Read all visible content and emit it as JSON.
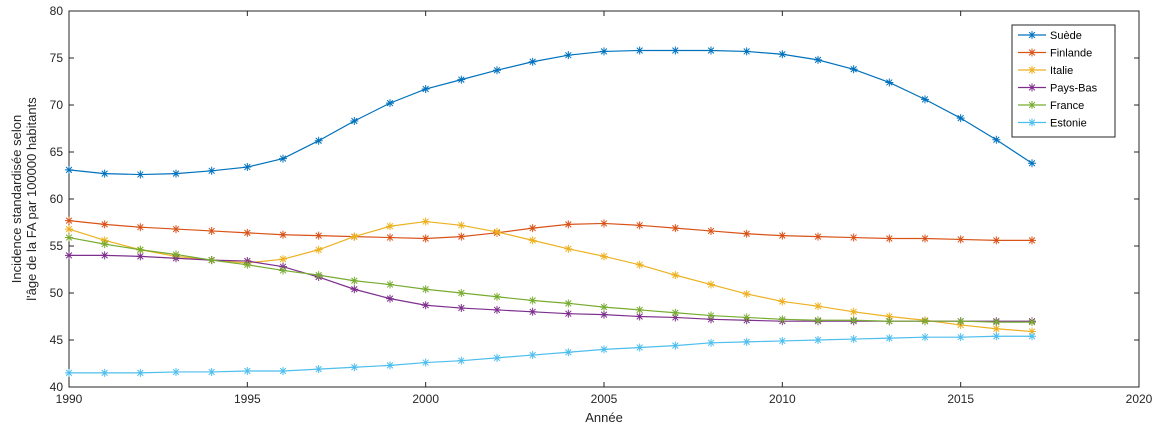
{
  "chart_data": {
    "type": "line",
    "title": "",
    "xlabel": "Année",
    "ylabel_lines": [
      "Incidence standardisée selon",
      "l'âge de la FA par 100000 habitants"
    ],
    "xlim": [
      1990,
      2020
    ],
    "ylim": [
      40,
      80
    ],
    "xticks": [
      1990,
      1995,
      2000,
      2005,
      2010,
      2015,
      2020
    ],
    "yticks": [
      40,
      45,
      50,
      55,
      60,
      65,
      70,
      75,
      80
    ],
    "grid": false,
    "legend_position": "top-right",
    "marker": "asterisk",
    "x": [
      1990,
      1991,
      1992,
      1993,
      1994,
      1995,
      1996,
      1997,
      1998,
      1999,
      2000,
      2001,
      2002,
      2003,
      2004,
      2005,
      2006,
      2007,
      2008,
      2009,
      2010,
      2011,
      2012,
      2013,
      2014,
      2015,
      2016,
      2017
    ],
    "series": [
      {
        "name": "Suède",
        "color": "#0072BD",
        "values": [
          63.1,
          62.7,
          62.6,
          62.7,
          63.0,
          63.4,
          64.3,
          66.2,
          68.3,
          70.2,
          71.7,
          72.7,
          73.7,
          74.6,
          75.3,
          75.7,
          75.8,
          75.8,
          75.8,
          75.7,
          75.4,
          74.8,
          73.8,
          72.4,
          70.6,
          68.6,
          66.3,
          63.8
        ]
      },
      {
        "name": "Finlande",
        "color": "#D95319",
        "values": [
          57.7,
          57.3,
          57.0,
          56.8,
          56.6,
          56.4,
          56.2,
          56.1,
          56.0,
          55.9,
          55.8,
          56.0,
          56.4,
          56.9,
          57.3,
          57.4,
          57.2,
          56.9,
          56.6,
          56.3,
          56.1,
          56.0,
          55.9,
          55.8,
          55.8,
          55.7,
          55.6,
          55.6
        ]
      },
      {
        "name": "Italie",
        "color": "#EDB120",
        "values": [
          56.8,
          55.6,
          54.6,
          53.9,
          53.5,
          53.2,
          53.6,
          54.6,
          56.0,
          57.1,
          57.6,
          57.2,
          56.5,
          55.6,
          54.7,
          53.9,
          53.0,
          51.9,
          50.9,
          49.9,
          49.1,
          48.6,
          48.0,
          47.5,
          47.1,
          46.6,
          46.2,
          45.9
        ]
      },
      {
        "name": "Pays-Bas",
        "color": "#7E2F8E",
        "values": [
          54.0,
          54.0,
          53.9,
          53.7,
          53.5,
          53.4,
          52.8,
          51.7,
          50.4,
          49.4,
          48.7,
          48.4,
          48.2,
          48.0,
          47.8,
          47.7,
          47.5,
          47.4,
          47.2,
          47.1,
          47.0,
          47.0,
          47.0,
          47.0,
          47.0,
          47.0,
          47.0,
          47.0
        ]
      },
      {
        "name": "France",
        "color": "#77AC30",
        "values": [
          55.9,
          55.2,
          54.6,
          54.1,
          53.5,
          53.0,
          52.4,
          51.9,
          51.3,
          50.9,
          50.4,
          50.0,
          49.6,
          49.2,
          48.9,
          48.5,
          48.2,
          47.9,
          47.6,
          47.4,
          47.2,
          47.1,
          47.1,
          47.0,
          47.0,
          47.0,
          46.9,
          46.9
        ]
      },
      {
        "name": "Estonie",
        "color": "#4DBEEE",
        "values": [
          41.5,
          41.5,
          41.5,
          41.6,
          41.6,
          41.7,
          41.7,
          41.9,
          42.1,
          42.3,
          42.6,
          42.8,
          43.1,
          43.4,
          43.7,
          44.0,
          44.2,
          44.4,
          44.7,
          44.8,
          44.9,
          45.0,
          45.1,
          45.2,
          45.3,
          45.3,
          45.4,
          45.4
        ]
      }
    ]
  }
}
